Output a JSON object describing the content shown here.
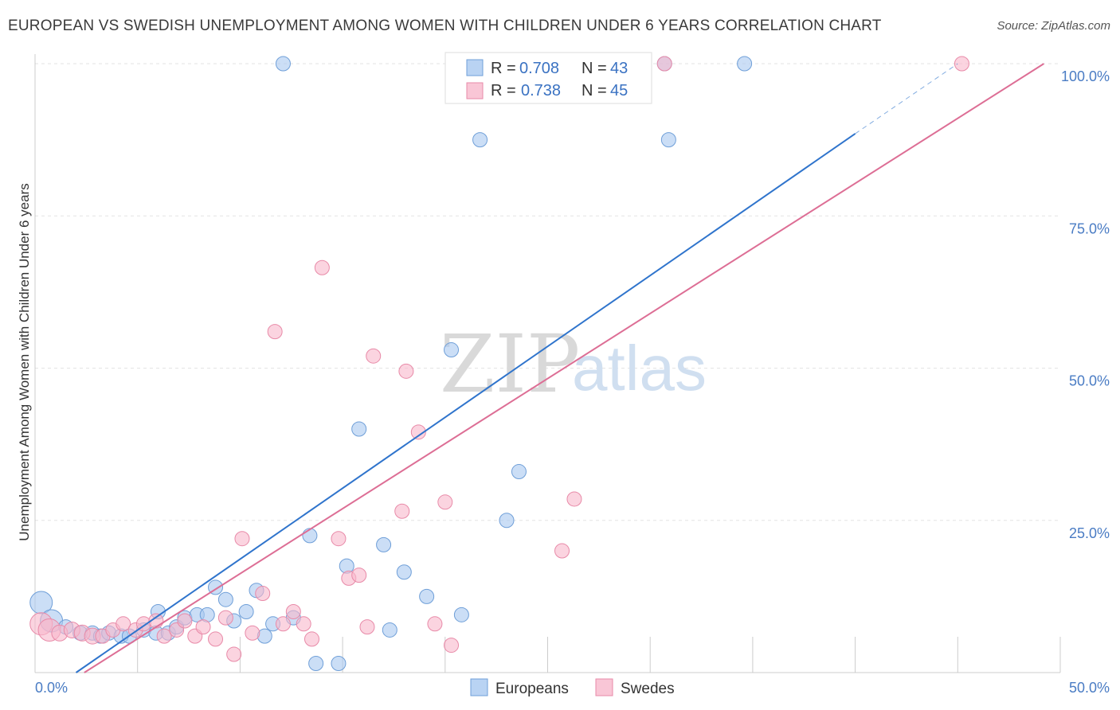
{
  "title": "EUROPEAN VS SWEDISH UNEMPLOYMENT AMONG WOMEN WITH CHILDREN UNDER 6 YEARS CORRELATION CHART",
  "source": "Source: ZipAtlas.com",
  "watermark": {
    "zip": "ZIP",
    "atlas": "atlas"
  },
  "chart_data": {
    "type": "scatter",
    "ylabel": "Unemployment Among Women with Children Under 6 years",
    "xlabel": "",
    "xlim": [
      0,
      50
    ],
    "ylim": [
      0,
      100
    ],
    "x_ticks": [
      {
        "value": 0,
        "label": "0.0%"
      },
      {
        "value": 50,
        "label": "50.0%"
      }
    ],
    "y_ticks": [
      {
        "value": 25,
        "label": "25.0%"
      },
      {
        "value": 50,
        "label": "50.0%"
      },
      {
        "value": 75,
        "label": "75.0%"
      },
      {
        "value": 100,
        "label": "100.0%"
      }
    ],
    "grid": true,
    "legend_top": [
      {
        "r_label": "R =",
        "r_value": "0.708",
        "n_label": "N =",
        "n_value": "43",
        "color": "#a8c8f0"
      },
      {
        "r_label": "R =",
        "r_value": "0.738",
        "n_label": "N =",
        "n_value": "45",
        "color": "#f8b8cc"
      }
    ],
    "series": [
      {
        "name": "Europeans",
        "color": "#a8c8f0",
        "stroke": "#6f9fd8",
        "line_color": "#2f74cc",
        "trend": {
          "x0": 2.0,
          "y0": 0.0,
          "x1": 40.0,
          "y1": 88.5,
          "dash_x1": 45.0,
          "dash_y1": 100.0
        },
        "points": [
          [
            0.3,
            11.5,
            14
          ],
          [
            0.8,
            8.5,
            14
          ],
          [
            1.5,
            7.5,
            9
          ],
          [
            2.2,
            6.5,
            9
          ],
          [
            2.8,
            6.5,
            9
          ],
          [
            3.2,
            6.0,
            9
          ],
          [
            3.6,
            6.5,
            9
          ],
          [
            4.2,
            6.0,
            9
          ],
          [
            4.6,
            6.0,
            9
          ],
          [
            5.3,
            7.0,
            9
          ],
          [
            5.9,
            6.5,
            9
          ],
          [
            6.0,
            10.0,
            9
          ],
          [
            6.5,
            6.5,
            9
          ],
          [
            6.9,
            7.5,
            9
          ],
          [
            7.3,
            9.0,
            9
          ],
          [
            7.9,
            9.5,
            9
          ],
          [
            8.4,
            9.5,
            9
          ],
          [
            8.8,
            14.0,
            9
          ],
          [
            9.3,
            12.0,
            9
          ],
          [
            9.7,
            8.5,
            9
          ],
          [
            10.3,
            10.0,
            9
          ],
          [
            10.8,
            13.5,
            9
          ],
          [
            11.2,
            6.0,
            9
          ],
          [
            11.6,
            8.0,
            9
          ],
          [
            12.1,
            100.0,
            9
          ],
          [
            12.6,
            9.0,
            9
          ],
          [
            13.4,
            22.5,
            9
          ],
          [
            13.7,
            1.5,
            9
          ],
          [
            14.8,
            1.5,
            9
          ],
          [
            15.2,
            17.5,
            9
          ],
          [
            15.8,
            40.0,
            9
          ],
          [
            17.0,
            21.0,
            9
          ],
          [
            17.3,
            7.0,
            9
          ],
          [
            18.0,
            16.5,
            9
          ],
          [
            19.1,
            12.5,
            9
          ],
          [
            20.3,
            53.0,
            9
          ],
          [
            20.8,
            9.5,
            9
          ],
          [
            21.7,
            87.5,
            9
          ],
          [
            23.0,
            25.0,
            9
          ],
          [
            23.6,
            33.0,
            9
          ],
          [
            30.7,
            100.0,
            9
          ],
          [
            30.9,
            87.5,
            9
          ],
          [
            34.6,
            100.0,
            9
          ]
        ]
      },
      {
        "name": "Swedes",
        "color": "#f8b8cc",
        "stroke": "#e88aa8",
        "line_color": "#dd6e95",
        "trend": {
          "x0": 2.4,
          "y0": 0.0,
          "x1": 49.2,
          "y1": 100.0
        },
        "points": [
          [
            0.3,
            8.0,
            14
          ],
          [
            0.7,
            7.0,
            14
          ],
          [
            1.2,
            6.5,
            10
          ],
          [
            1.8,
            7.0,
            10
          ],
          [
            2.3,
            6.5,
            10
          ],
          [
            2.8,
            6.0,
            10
          ],
          [
            3.3,
            6.0,
            9
          ],
          [
            3.8,
            7.0,
            9
          ],
          [
            4.3,
            8.0,
            9
          ],
          [
            4.9,
            7.0,
            9
          ],
          [
            5.3,
            8.0,
            9
          ],
          [
            5.9,
            8.5,
            9
          ],
          [
            6.3,
            6.0,
            9
          ],
          [
            6.9,
            7.0,
            9
          ],
          [
            7.3,
            8.5,
            9
          ],
          [
            7.8,
            6.0,
            9
          ],
          [
            8.2,
            7.5,
            9
          ],
          [
            8.8,
            5.5,
            9
          ],
          [
            9.3,
            9.0,
            9
          ],
          [
            9.7,
            3.0,
            9
          ],
          [
            10.1,
            22.0,
            9
          ],
          [
            10.6,
            6.5,
            9
          ],
          [
            11.1,
            13.0,
            9
          ],
          [
            11.7,
            56.0,
            9
          ],
          [
            12.1,
            8.0,
            9
          ],
          [
            12.6,
            10.0,
            9
          ],
          [
            13.1,
            8.0,
            9
          ],
          [
            13.5,
            5.5,
            9
          ],
          [
            14.0,
            66.5,
            9
          ],
          [
            14.8,
            22.0,
            9
          ],
          [
            15.3,
            15.5,
            9
          ],
          [
            15.8,
            16.0,
            9
          ],
          [
            16.2,
            7.5,
            9
          ],
          [
            16.5,
            52.0,
            9
          ],
          [
            17.9,
            26.5,
            9
          ],
          [
            18.1,
            49.5,
            9
          ],
          [
            18.7,
            39.5,
            9
          ],
          [
            19.5,
            8.0,
            9
          ],
          [
            20.0,
            28.0,
            9
          ],
          [
            20.3,
            4.5,
            9
          ],
          [
            23.3,
            100.0,
            9
          ],
          [
            25.7,
            20.0,
            9
          ],
          [
            26.3,
            28.5,
            9
          ],
          [
            30.7,
            100.0,
            9
          ],
          [
            45.2,
            100.0,
            9
          ]
        ]
      }
    ]
  }
}
